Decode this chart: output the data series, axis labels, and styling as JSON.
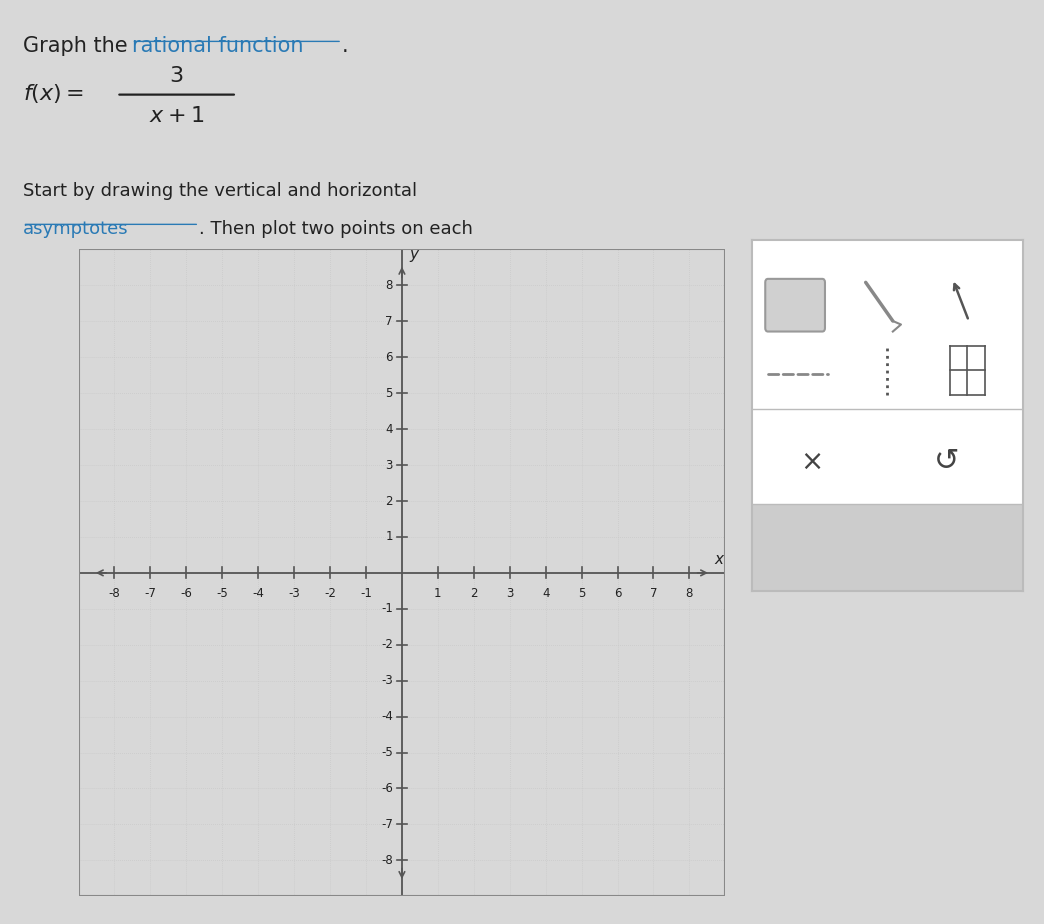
{
  "title_line1": "Graph the ",
  "title_link": "rational function",
  "title_period": ".",
  "instruction_start": "Start by drawing the vertical and horizontal ",
  "instruction_link": "asymptotes",
  "instruction_end": ". Then plot two points on each",
  "x_label": "x",
  "y_label": "y",
  "x_min": -8,
  "x_max": 8,
  "y_min": -8,
  "y_max": 8,
  "grid_color": "#c8c8c8",
  "axis_color": "#555555",
  "bg_color": "#f0eeea",
  "outer_bg": "#d8d8d8",
  "text_color": "#222222",
  "link_color": "#2a7ab5",
  "fig_width": 10.44,
  "fig_height": 9.24
}
